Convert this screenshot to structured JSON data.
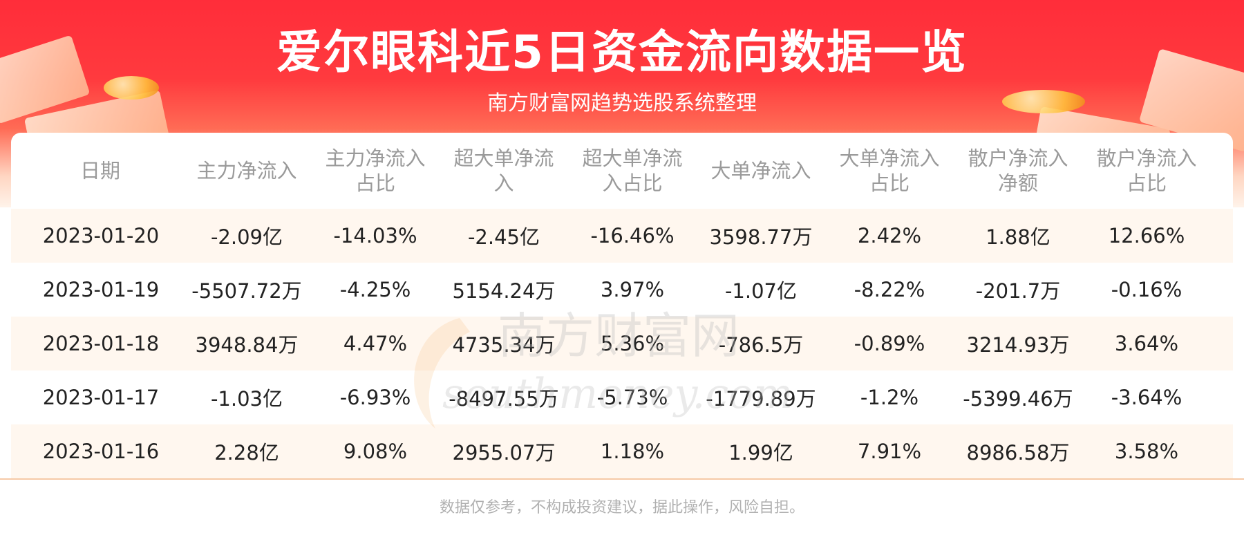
{
  "header": {
    "title": "爱尔眼科近5日资金流向数据一览",
    "subtitle": "南方财富网趋势选股系统整理"
  },
  "table": {
    "columns": [
      [
        "日期"
      ],
      [
        "主力净流入"
      ],
      [
        "主力净流入",
        "占比"
      ],
      [
        "超大单净流",
        "入"
      ],
      [
        "超大单净流",
        "入占比"
      ],
      [
        "大单净流入"
      ],
      [
        "大单净流入",
        "占比"
      ],
      [
        "散户净流入",
        "净额"
      ],
      [
        "散户净流入",
        "占比"
      ]
    ],
    "rows": [
      [
        "2023-01-20",
        "-2.09亿",
        "-14.03%",
        "-2.45亿",
        "-16.46%",
        "3598.77万",
        "2.42%",
        "1.88亿",
        "12.66%"
      ],
      [
        "2023-01-19",
        "-5507.72万",
        "-4.25%",
        "5154.24万",
        "3.97%",
        "-1.07亿",
        "-8.22%",
        "-201.7万",
        "-0.16%"
      ],
      [
        "2023-01-18",
        "3948.84万",
        "4.47%",
        "4735.34万",
        "5.36%",
        "-786.5万",
        "-0.89%",
        "3214.93万",
        "3.64%"
      ],
      [
        "2023-01-17",
        "-1.03亿",
        "-6.93%",
        "-8497.55万",
        "-5.73%",
        "-1779.89万",
        "-1.2%",
        "-5399.46万",
        "-3.64%"
      ],
      [
        "2023-01-16",
        "2.28亿",
        "9.08%",
        "2955.07万",
        "1.18%",
        "1.99亿",
        "7.91%",
        "8986.58万",
        "3.58%"
      ]
    ]
  },
  "watermark": {
    "cn": "南方财富网",
    "en": "southmoney.com"
  },
  "footer": {
    "disclaimer": "数据仅参考，不构成投资建议，据此操作，风险自担。"
  },
  "colors": {
    "banner_red": "#ff2d3a",
    "row_shade": "#fff7ef",
    "header_text": "#9a9a9a"
  }
}
